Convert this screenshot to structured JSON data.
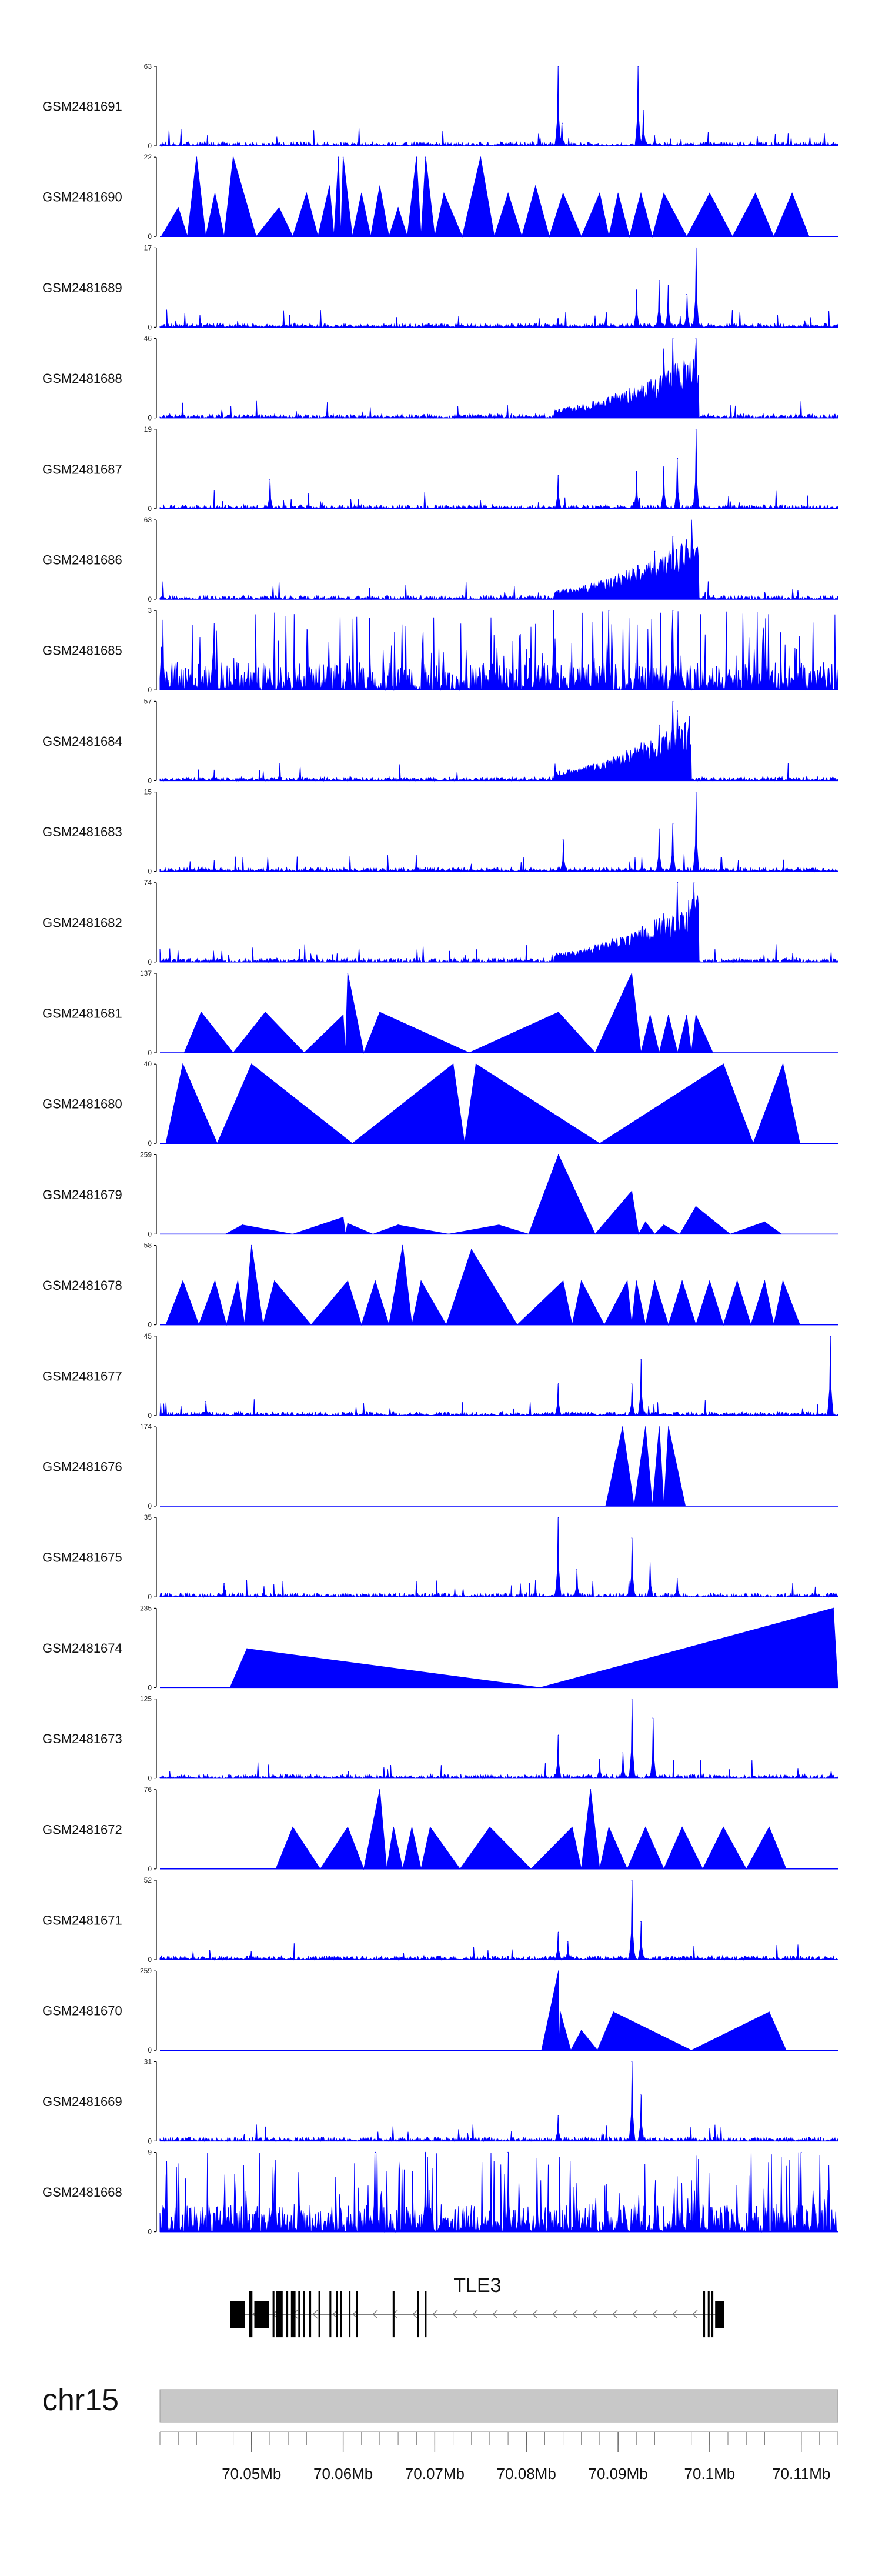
{
  "chart_data": {
    "type": "area",
    "title": "",
    "fill_color": "#0000FF",
    "axis_color": "#000000",
    "x_range": [
      70040000,
      70114000
    ],
    "tracks": [
      {
        "name": "GSM2481691",
        "ymax": 63,
        "ymin": 0,
        "style": "peaks",
        "peaks": [
          [
            70083500,
            63
          ],
          [
            70092200,
            63
          ],
          [
            70092800,
            28
          ],
          [
            70083900,
            18
          ],
          [
            70094000,
            8
          ]
        ]
      },
      {
        "name": "GSM2481690",
        "ymax": 22,
        "ymin": 0,
        "style": "triangles",
        "peaks": [
          [
            70042000,
            8
          ],
          [
            70044000,
            22
          ],
          [
            70046000,
            12
          ],
          [
            70048000,
            22
          ],
          [
            70053000,
            8
          ],
          [
            70056000,
            12
          ],
          [
            70058500,
            14
          ],
          [
            70059500,
            22
          ],
          [
            70060000,
            22
          ],
          [
            70062000,
            12
          ],
          [
            70064000,
            14
          ],
          [
            70066000,
            8
          ],
          [
            70068000,
            22
          ],
          [
            70069000,
            22
          ],
          [
            70071000,
            12
          ],
          [
            70075000,
            22
          ],
          [
            70078000,
            12
          ],
          [
            70081000,
            14
          ],
          [
            70084000,
            12
          ],
          [
            70088000,
            12
          ],
          [
            70090000,
            12
          ],
          [
            70092500,
            12
          ],
          [
            70095000,
            12
          ],
          [
            70100000,
            12
          ],
          [
            70105000,
            12
          ],
          [
            70109000,
            12
          ]
        ]
      },
      {
        "name": "GSM2481689",
        "ymax": 17,
        "ymin": 0,
        "style": "noise",
        "peaks": [
          [
            70098500,
            17
          ],
          [
            70094500,
            10
          ],
          [
            70095500,
            9
          ],
          [
            70092000,
            8
          ],
          [
            70097500,
            7
          ]
        ]
      },
      {
        "name": "GSM2481688",
        "ymax": 46,
        "ymin": 0,
        "style": "cluster",
        "cluster": [
          70083000,
          70098800
        ],
        "peaks": [
          [
            70096000,
            46
          ],
          [
            70098500,
            46
          ],
          [
            70095000,
            40
          ]
        ]
      },
      {
        "name": "GSM2481687",
        "ymax": 19,
        "ymin": 0,
        "style": "noise",
        "peaks": [
          [
            70098500,
            19
          ],
          [
            70096500,
            12
          ],
          [
            70095000,
            10
          ],
          [
            70092000,
            9
          ],
          [
            70083500,
            8
          ],
          [
            70052000,
            7
          ]
        ]
      },
      {
        "name": "GSM2481686",
        "ymax": 63,
        "ymin": 0,
        "style": "cluster",
        "cluster": [
          70083000,
          70098800
        ],
        "peaks": [
          [
            70096000,
            50
          ],
          [
            70098000,
            63
          ],
          [
            70094000,
            38
          ]
        ]
      },
      {
        "name": "GSM2481685",
        "ymax": 3,
        "ymin": 0,
        "style": "dense",
        "peaks": [
          [
            70089000,
            3
          ],
          [
            70096000,
            3
          ],
          [
            70083000,
            3
          ]
        ]
      },
      {
        "name": "GSM2481684",
        "ymax": 57,
        "ymin": 0,
        "style": "cluster",
        "cluster": [
          70083000,
          70098000
        ],
        "peaks": [
          [
            70096000,
            57
          ],
          [
            70096500,
            50
          ],
          [
            70094500,
            40
          ]
        ]
      },
      {
        "name": "GSM2481683",
        "ymax": 15,
        "ymin": 0,
        "style": "noise",
        "peaks": [
          [
            70098500,
            15
          ],
          [
            70096000,
            9
          ],
          [
            70094500,
            8
          ],
          [
            70084000,
            6
          ]
        ]
      },
      {
        "name": "GSM2481682",
        "ymax": 74,
        "ymin": 0,
        "style": "cluster",
        "cluster": [
          70083000,
          70098800
        ],
        "peaks": [
          [
            70096500,
            74
          ],
          [
            70098300,
            74
          ],
          [
            70095000,
            45
          ]
        ]
      },
      {
        "name": "GSM2481681",
        "ymax": 137,
        "ymin": 0,
        "style": "triangles",
        "peaks": [
          [
            70044500,
            70
          ],
          [
            70051500,
            70
          ],
          [
            70060500,
            137
          ],
          [
            70060000,
            65
          ],
          [
            70064000,
            70
          ],
          [
            70083500,
            70
          ],
          [
            70091500,
            137
          ],
          [
            70093500,
            65
          ],
          [
            70095500,
            65
          ],
          [
            70097500,
            65
          ],
          [
            70098500,
            65
          ]
        ]
      },
      {
        "name": "GSM2481680",
        "ymax": 40,
        "ymin": 0,
        "style": "triangles",
        "peaks": [
          [
            70042500,
            40
          ],
          [
            70050000,
            40
          ],
          [
            70072000,
            40
          ],
          [
            70074500,
            40
          ],
          [
            70101500,
            40
          ],
          [
            70108000,
            40
          ]
        ]
      },
      {
        "name": "GSM2481679",
        "ymax": 259,
        "ymin": 0,
        "style": "triangles",
        "peaks": [
          [
            70049000,
            30
          ],
          [
            70060000,
            55
          ],
          [
            70060500,
            35
          ],
          [
            70066000,
            30
          ],
          [
            70077000,
            30
          ],
          [
            70083500,
            259
          ],
          [
            70091500,
            140
          ],
          [
            70093000,
            40
          ],
          [
            70095000,
            30
          ],
          [
            70098500,
            90
          ],
          [
            70106000,
            40
          ]
        ]
      },
      {
        "name": "GSM2481678",
        "ymax": 58,
        "ymin": 0,
        "style": "triangles",
        "peaks": [
          [
            70042500,
            32
          ],
          [
            70046000,
            32
          ],
          [
            70048500,
            32
          ],
          [
            70050000,
            58
          ],
          [
            70052500,
            32
          ],
          [
            70060500,
            32
          ],
          [
            70063500,
            32
          ],
          [
            70066500,
            58
          ],
          [
            70068500,
            32
          ],
          [
            70074000,
            55
          ],
          [
            70084000,
            32
          ],
          [
            70086000,
            32
          ],
          [
            70091000,
            32
          ],
          [
            70092000,
            32
          ],
          [
            70094000,
            32
          ],
          [
            70097000,
            32
          ],
          [
            70100000,
            32
          ],
          [
            70103000,
            32
          ],
          [
            70106000,
            32
          ],
          [
            70108000,
            32
          ]
        ]
      },
      {
        "name": "GSM2481677",
        "ymax": 45,
        "ymin": 0,
        "style": "noise",
        "peaks": [
          [
            70113200,
            45
          ],
          [
            70092500,
            32
          ],
          [
            70091500,
            18
          ],
          [
            70083500,
            18
          ],
          [
            70045000,
            8
          ]
        ]
      },
      {
        "name": "GSM2481676",
        "ymax": 174,
        "ymin": 0,
        "style": "triangles",
        "peaks": [
          [
            70090500,
            174
          ],
          [
            70093000,
            174
          ],
          [
            70094500,
            174
          ],
          [
            70095500,
            174
          ]
        ]
      },
      {
        "name": "GSM2481675",
        "ymax": 35,
        "ymin": 0,
        "style": "noise",
        "peaks": [
          [
            70083500,
            35
          ],
          [
            70091500,
            26
          ],
          [
            70093500,
            15
          ],
          [
            70085500,
            12
          ],
          [
            70096500,
            8
          ],
          [
            70047000,
            6
          ]
        ]
      },
      {
        "name": "GSM2481674",
        "ymax": 235,
        "ymin": 0,
        "style": "triangles",
        "peaks": [
          [
            70049500,
            115
          ],
          [
            70113500,
            235
          ]
        ]
      },
      {
        "name": "GSM2481673",
        "ymax": 125,
        "ymin": 0,
        "style": "noise",
        "peaks": [
          [
            70091500,
            125
          ],
          [
            70093800,
            95
          ],
          [
            70083500,
            68
          ],
          [
            70088000,
            30
          ],
          [
            70090500,
            40
          ]
        ]
      },
      {
        "name": "GSM2481672",
        "ymax": 76,
        "ymin": 0,
        "style": "triangles",
        "peaks": [
          [
            70054500,
            40
          ],
          [
            70060500,
            40
          ],
          [
            70064000,
            76
          ],
          [
            70065500,
            40
          ],
          [
            70067500,
            40
          ],
          [
            70069500,
            40
          ],
          [
            70076000,
            40
          ],
          [
            70085000,
            40
          ],
          [
            70087000,
            76
          ],
          [
            70089000,
            40
          ],
          [
            70093000,
            40
          ],
          [
            70097000,
            40
          ],
          [
            70101500,
            40
          ],
          [
            70106500,
            40
          ]
        ]
      },
      {
        "name": "GSM2481671",
        "ymax": 52,
        "ymin": 0,
        "style": "noise",
        "peaks": [
          [
            70091500,
            52
          ],
          [
            70092500,
            25
          ],
          [
            70083500,
            18
          ],
          [
            70084500,
            12
          ]
        ]
      },
      {
        "name": "GSM2481670",
        "ymax": 259,
        "ymin": 0,
        "style": "triangles",
        "peaks": [
          [
            70083500,
            259
          ],
          [
            70083700,
            125
          ],
          [
            70086000,
            65
          ],
          [
            70089500,
            125
          ],
          [
            70106500,
            125
          ]
        ]
      },
      {
        "name": "GSM2481669",
        "ymax": 31,
        "ymin": 0,
        "style": "noise",
        "peaks": [
          [
            70091500,
            31
          ],
          [
            70092500,
            18
          ],
          [
            70083500,
            10
          ]
        ]
      },
      {
        "name": "GSM2481668",
        "ymax": 9,
        "ymin": 0,
        "style": "dense",
        "peaks": [
          [
            70063500,
            9
          ],
          [
            70069000,
            9
          ],
          [
            70078000,
            9
          ],
          [
            70110000,
            9
          ]
        ]
      }
    ],
    "gene": {
      "name": "TLE3",
      "chromosome": "chr15",
      "strand": "-",
      "start": 70047700,
      "end": 70101600
    },
    "ideogram": {
      "label": "chr15"
    },
    "xaxis": {
      "tick_labels": [
        {
          "value": 70050000,
          "label": "70.05Mb"
        },
        {
          "value": 70060000,
          "label": "70.06Mb"
        },
        {
          "value": 70070000,
          "label": "70.07Mb"
        },
        {
          "value": 70080000,
          "label": "70.08Mb"
        },
        {
          "value": 70090000,
          "label": "70.09Mb"
        },
        {
          "value": 70100000,
          "label": "70.1Mb"
        },
        {
          "value": 70110000,
          "label": "70.11Mb"
        }
      ],
      "minor_tick_step": 2000
    }
  }
}
